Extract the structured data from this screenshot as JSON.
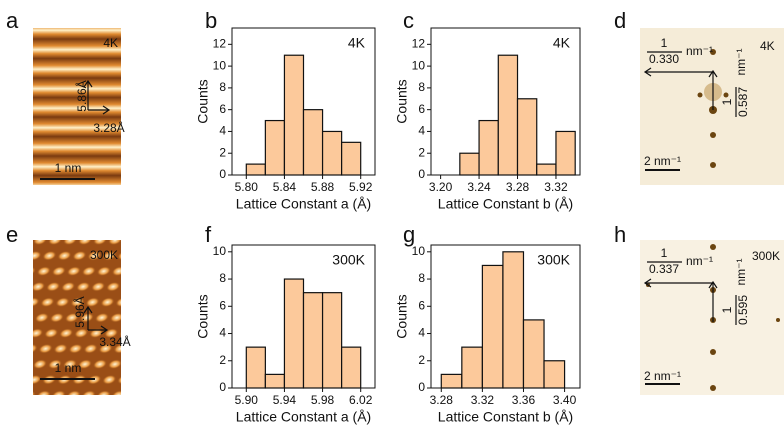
{
  "panel_labels": [
    "a",
    "b",
    "c",
    "d",
    "e",
    "f",
    "g",
    "h"
  ],
  "images": [
    {
      "temperature": "4K",
      "lattice_b": "5.86Å",
      "lattice_a": "3.28Å",
      "scale": "1 nm"
    },
    {
      "temperature": "300K",
      "lattice_b": "5.96Å",
      "lattice_a": "3.34Å",
      "scale": "1 nm"
    }
  ],
  "fft": [
    {
      "temperature": "4K",
      "numerator_x": "1",
      "denominator_x": "0.330",
      "unit_x": "nm⁻¹",
      "numerator_y": "1",
      "denominator_y": "0.587",
      "unit_y": "nm⁻¹",
      "scale": "2 nm⁻¹"
    },
    {
      "temperature": "300K",
      "numerator_x": "1",
      "denominator_x": "0.337",
      "unit_x": "nm⁻¹",
      "numerator_y": "1",
      "denominator_y": "0.595",
      "unit_y": "nm⁻¹",
      "scale": "2 nm⁻¹"
    }
  ],
  "chart_data": [
    {
      "type": "histogram",
      "label": "4K",
      "xlabel": "Lattice Constant a (Å)",
      "ylabel": "Counts",
      "color": "#fcc99b",
      "bins": [
        5.8,
        5.82,
        5.84,
        5.86,
        5.88,
        5.9,
        5.92
      ],
      "values": [
        1,
        5,
        11,
        6,
        4,
        3
      ],
      "xlim": [
        5.785,
        5.935
      ],
      "xticks": [
        {
          "value": 5.8,
          "label": "5.80"
        },
        5.84,
        5.88,
        5.92
      ],
      "ylim": [
        0,
        13.5
      ],
      "yticks": [
        0,
        2,
        4,
        6,
        8,
        10,
        12
      ]
    },
    {
      "type": "histogram",
      "label": "4K",
      "xlabel": "Lattice Constant b (Å)",
      "ylabel": "Counts",
      "color": "#fcc99b",
      "bins": [
        3.22,
        3.24,
        3.26,
        3.28,
        3.3,
        3.32,
        3.34
      ],
      "values": [
        2,
        5,
        11,
        7,
        1,
        4
      ],
      "xlim": [
        3.19,
        3.345
      ],
      "xticks": [
        {
          "value": 3.2,
          "label": "3.20"
        },
        3.24,
        3.28,
        3.32
      ],
      "ylim": [
        0,
        13.5
      ],
      "yticks": [
        0,
        2,
        4,
        6,
        8,
        10,
        12
      ]
    },
    {
      "type": "histogram",
      "label": "300K",
      "xlabel": "Lattice Constant a (Å)",
      "ylabel": "Counts",
      "color": "#fcc99b",
      "bins": [
        5.9,
        5.92,
        5.94,
        5.96,
        5.98,
        6.0,
        6.02
      ],
      "values": [
        3,
        1,
        8,
        7,
        7,
        3
      ],
      "xlim": [
        5.885,
        6.035
      ],
      "xticks": [
        {
          "value": 5.9,
          "label": "5.90"
        },
        5.94,
        5.98,
        6.02
      ],
      "ylim": [
        0,
        10.5
      ],
      "yticks": [
        0,
        2,
        4,
        6,
        8,
        10
      ]
    },
    {
      "type": "histogram",
      "label": "300K",
      "xlabel": "Lattice Constant b (Å)",
      "ylabel": "Counts",
      "color": "#fcc99b",
      "bins": [
        3.28,
        3.3,
        3.32,
        3.34,
        3.36,
        3.38,
        3.4
      ],
      "values": [
        1,
        3,
        9,
        10,
        5,
        2
      ],
      "xlim": [
        3.27,
        3.415
      ],
      "xticks": [
        3.28,
        3.32,
        3.36,
        {
          "value": 3.4,
          "label": "3.40"
        }
      ],
      "ylim": [
        0,
        10.5
      ],
      "yticks": [
        0,
        2,
        4,
        6,
        8,
        10
      ]
    }
  ]
}
